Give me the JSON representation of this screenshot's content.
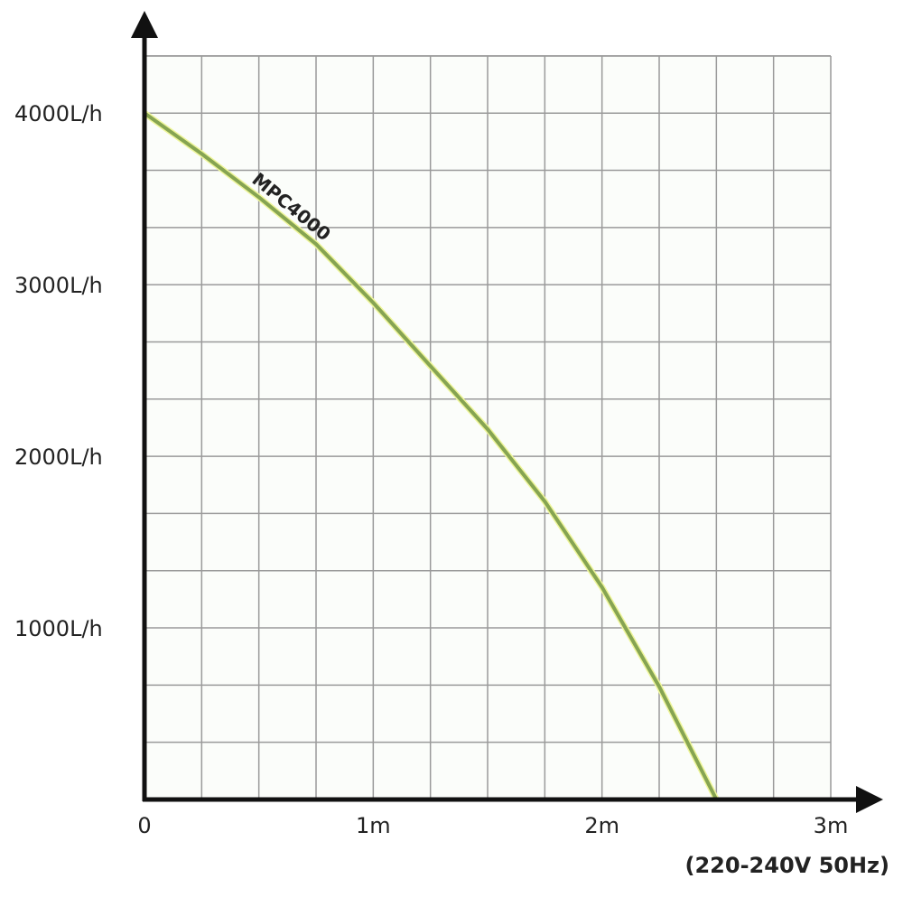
{
  "chart_data": {
    "type": "line",
    "subtitle": "(220-240V 50Hz)",
    "x": [
      0,
      0.25,
      0.5,
      0.75,
      1.0,
      1.25,
      1.5,
      1.75,
      2.0,
      2.25,
      2.5
    ],
    "series": [
      {
        "name": "MPC4000",
        "color": "#86a452",
        "values": [
          4000,
          3763,
          3510,
          3237,
          2895,
          2526,
          2158,
          1737,
          1237,
          658,
          0
        ]
      }
    ],
    "xlim": [
      0,
      3
    ],
    "ylim": [
      0,
      4333
    ],
    "xticks": [
      0,
      {
        "value": 1,
        "label": "1m"
      },
      {
        "value": 2,
        "label": "2m"
      },
      {
        "value": 3,
        "label": "3m"
      }
    ],
    "yticks": [
      {
        "value": 1000,
        "label": "1000L/h"
      },
      {
        "value": 2000,
        "label": "2000L/h"
      },
      {
        "value": 3000,
        "label": "3000L/h"
      },
      {
        "value": 4000,
        "label": "4000L/h"
      }
    ],
    "grid": true
  }
}
